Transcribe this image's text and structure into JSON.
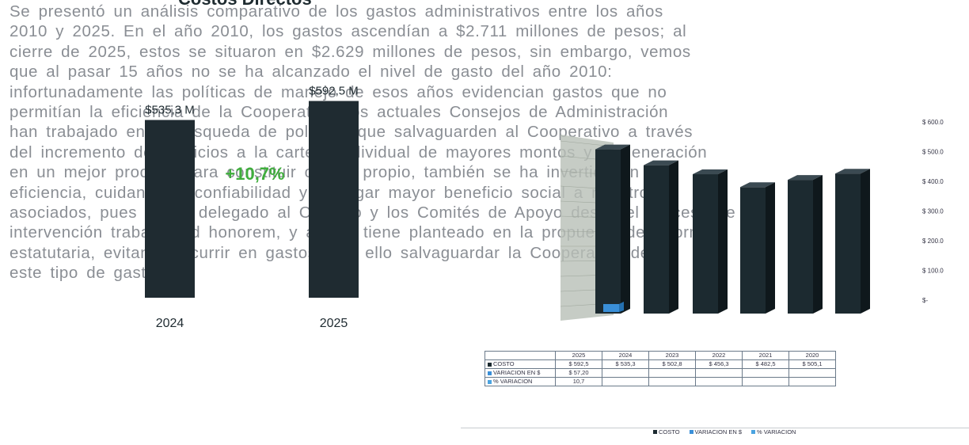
{
  "heading": "Costos Directos",
  "background_text": [
    "Se presentó un análisis comparativo de los gastos administrativos entre los años",
    "2010 y 2025. En el año 2010, los gastos ascendían a $2.711 millones de pesos; al",
    "cierre de 2025, estos se situaron en $2.629 millones de pesos, sin embargo, vemos",
    "que al pasar 15 años no se ha alcanzado el nivel de gasto del año 2010:",
    "infortunadamente las políticas de manejo de esos años evidencian gastos que no",
    "permitían la eficiencia de la Cooperativa, los actuales Consejos de Administración",
    "han trabajado en la búsqueda de políticas que salvaguarden al Cooperativo a través",
    "del incremento de servicios a la cartera individual de mayores montos y la generación",
    "en un mejor proceso para constituir capital propio, también se ha invertido en",
    "eficiencia, cuidando la confiabilidad y entregar mayor beneficio social a nuestros",
    "asociados, pues se ha delegado al Consejo y los Comités de Apoyo desde el proceso de",
    "intervención trabajan ad honorem, y así se tiene planteado en la propuesta de reforma",
    "estatutaria, evitando incurrir en gastos, con ello salvaguardar la Cooperativa de",
    "este tipo de gastos."
  ],
  "left_chart": {
    "chart_data": {
      "type": "bar",
      "categories": [
        "2024",
        "2025"
      ],
      "values": [
        535.3,
        592.5
      ],
      "value_labels": [
        "$535,3 M",
        "$592,5 M"
      ],
      "change_label": "+10,7%",
      "ylim": [
        0,
        620
      ]
    },
    "colors": {
      "bar": "#1f2b31",
      "change": "#3fae3c"
    }
  },
  "right_chart": {
    "chart_data": {
      "type": "bar",
      "categories": [
        "2025",
        "2024",
        "2023",
        "2022",
        "2021",
        "2020"
      ],
      "series": [
        {
          "name": "COSTO",
          "values": [
            592.5,
            535.3,
            502.8,
            456.3,
            482.5,
            505.1
          ]
        },
        {
          "name": "VARIACION EN $",
          "values": [
            57.2,
            null,
            null,
            null,
            null,
            null
          ]
        },
        {
          "name": "% VARIACION",
          "values": [
            10.7,
            null,
            null,
            null,
            null,
            null
          ]
        }
      ],
      "y_ticks": [
        "$ 600.0",
        "$ 500.0",
        "$ 400.0",
        "$ 300.0",
        "$ 200.0",
        "$ 100.0",
        "$-"
      ],
      "ylim": [
        0,
        600
      ],
      "legend_position": "bottom"
    },
    "colors": {
      "costo": "#1c2a30",
      "variacion": "#3a8fd8",
      "wall": "#b8bfb6"
    }
  },
  "table": {
    "headers": [
      "",
      "2025",
      "2024",
      "2023",
      "2022",
      "2021",
      "2020"
    ],
    "rows": [
      {
        "label": "COSTO",
        "color": "#1c2a30",
        "cells": [
          "$ 592,5",
          "$ 535,3",
          "$ 502,8",
          "$ 456,3",
          "$ 482,5",
          "$ 505,1"
        ]
      },
      {
        "label": "VARIACION EN $",
        "color": "#3a8fd8",
        "cells": [
          "$ 57,20",
          "",
          "",
          "",
          "",
          ""
        ]
      },
      {
        "label": "% VARIACION",
        "color": "#4aa3e0",
        "cells": [
          "10,7",
          "",
          "",
          "",
          "",
          ""
        ]
      }
    ]
  },
  "legend": [
    {
      "label": "COSTO",
      "color": "#1c2a30"
    },
    {
      "label": "VARIACION EN $",
      "color": "#3a8fd8"
    },
    {
      "label": "% VARIACION",
      "color": "#4aa3e0"
    }
  ]
}
